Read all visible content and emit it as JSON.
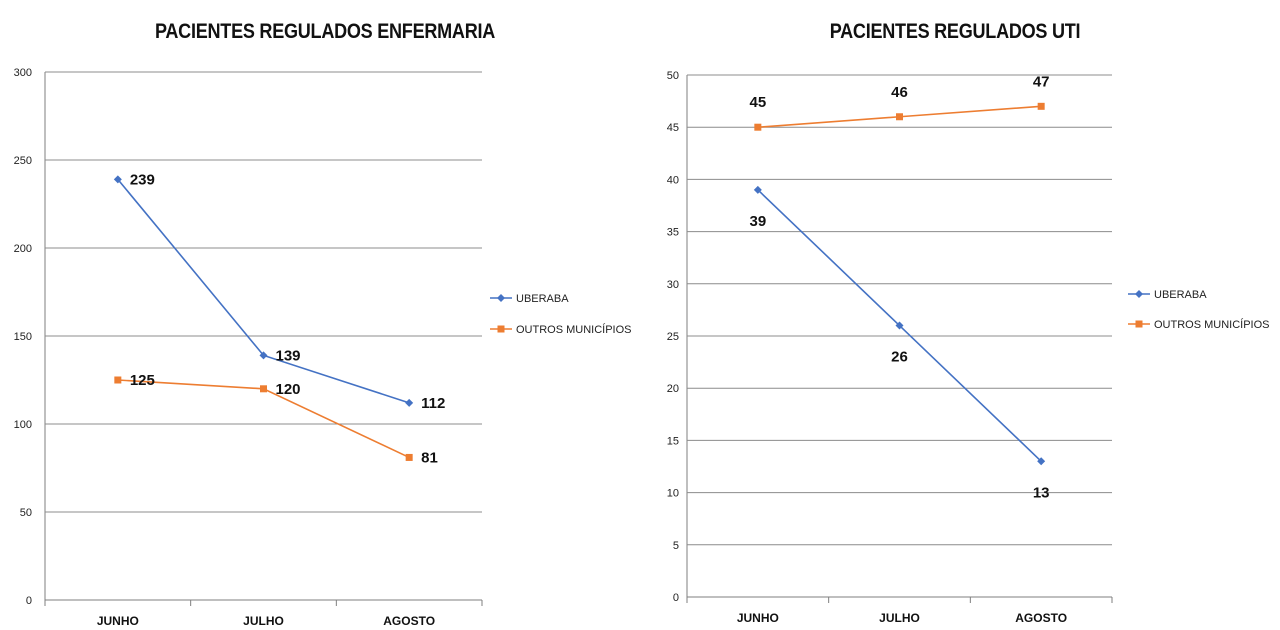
{
  "chart_data": [
    {
      "type": "line",
      "title": "PACIENTES REGULADOS ENFERMARIA",
      "categories": [
        "JUNHO",
        "JULHO",
        "AGOSTO"
      ],
      "series": [
        {
          "name": "UBERABA",
          "values": [
            239,
            139,
            112
          ],
          "color": "#4472C4",
          "marker": "diamond"
        },
        {
          "name": "OUTROS MUNICÍPIOS",
          "values": [
            125,
            120,
            81
          ],
          "color": "#ED7D31",
          "marker": "square"
        }
      ],
      "ylim": [
        0,
        300
      ],
      "yticks": [
        0,
        50,
        100,
        150,
        200,
        250,
        300
      ],
      "grid": true,
      "legend": "right",
      "data_labels": true
    },
    {
      "type": "line",
      "title": "PACIENTES REGULADOS UTI",
      "categories": [
        "JUNHO",
        "JULHO",
        "AGOSTO"
      ],
      "series": [
        {
          "name": "UBERABA",
          "values": [
            39,
            26,
            13
          ],
          "color": "#4472C4",
          "marker": "diamond"
        },
        {
          "name": "OUTROS MUNICÍPIOS",
          "values": [
            45,
            46,
            47
          ],
          "color": "#ED7D31",
          "marker": "square"
        }
      ],
      "ylim": [
        0,
        50
      ],
      "yticks": [
        0,
        5,
        10,
        15,
        20,
        25,
        30,
        35,
        40,
        45,
        50
      ],
      "grid": true,
      "legend": "right",
      "data_labels": true
    }
  ]
}
